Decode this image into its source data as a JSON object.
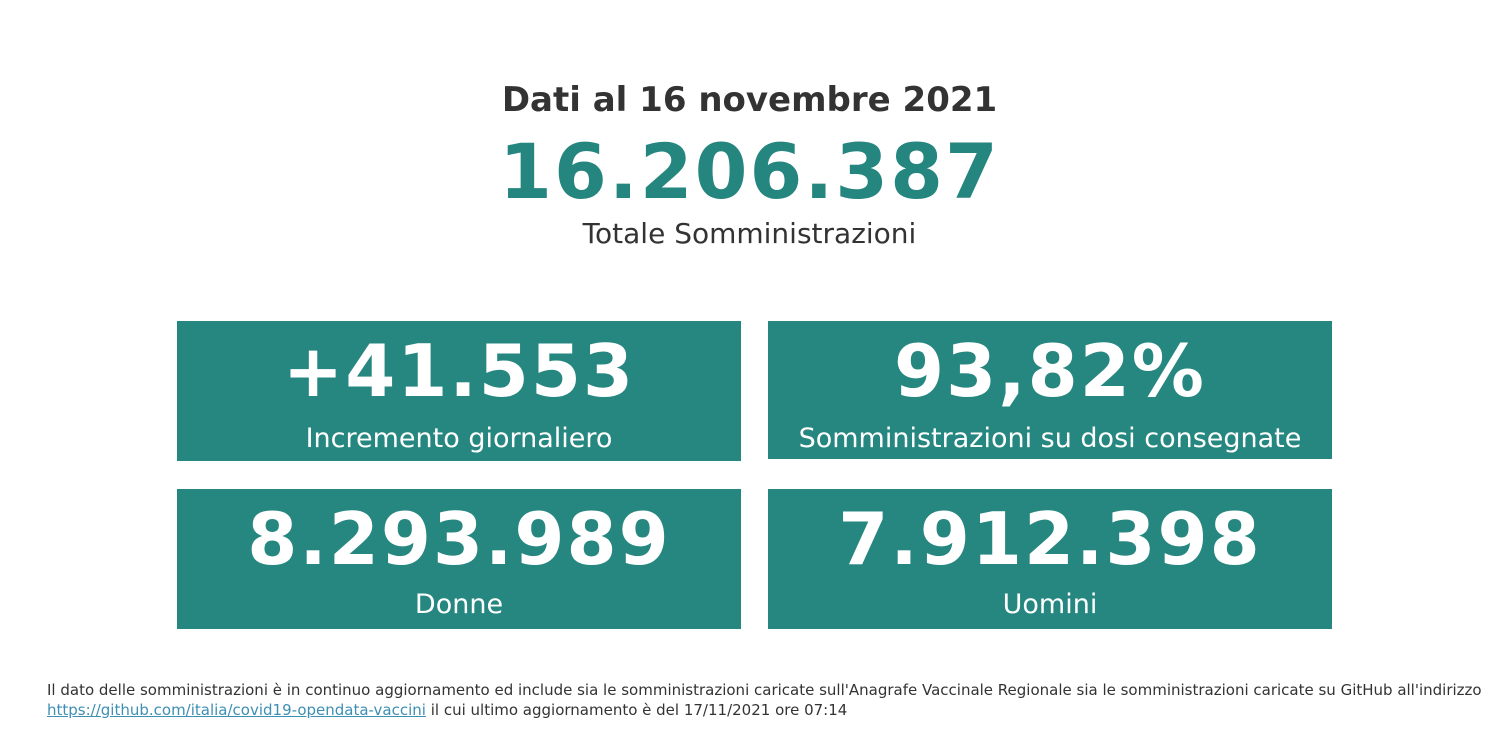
{
  "header": {
    "date_line": "Dati al 16 novembre 2021",
    "total_value": "16.206.387",
    "total_label": "Totale Somministrazioni"
  },
  "cards": [
    {
      "value": "+41.553",
      "label": "Incremento giornaliero"
    },
    {
      "value": "93,82%",
      "label": "Somministrazioni su dosi consegnate"
    },
    {
      "value": "8.293.989",
      "label": "Donne"
    },
    {
      "value": "7.912.398",
      "label": "Uomini"
    }
  ],
  "footer": {
    "text_before_link": "Il dato delle somministrazioni è in continuo aggiornamento ed include sia le somministrazioni caricate sull'Anagrafe Vaccinale Regionale sia le somministrazioni caricate su GitHub all'indirizzo",
    "link_text": "https://github.com/italia/covid19-opendata-vaccini",
    "text_after_link": " il cui ultimo aggiornamento è del 17/11/2021 ore 07:14"
  },
  "colors": {
    "accent": "#268780",
    "title_text": "#333333",
    "link": "#3d8fb4"
  }
}
